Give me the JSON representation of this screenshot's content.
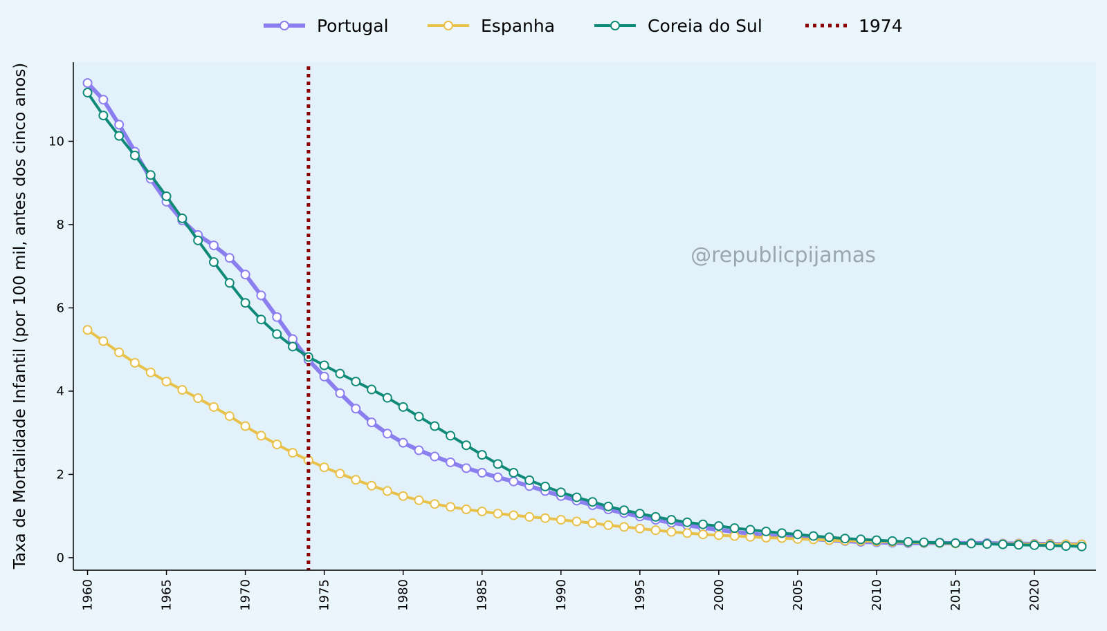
{
  "chart_data": {
    "type": "line",
    "title": "",
    "xlabel": "",
    "ylabel": "Taxa de Mortalidade Infantil (por 100 mil, antes dos cinco anos)",
    "xlim": [
      1959.1,
      2023.9
    ],
    "ylim": [
      -0.3,
      11.9
    ],
    "x_ticks": [
      1960,
      1965,
      1970,
      1975,
      1980,
      1985,
      1990,
      1995,
      2000,
      2005,
      2010,
      2015,
      2020
    ],
    "y_ticks": [
      0,
      2,
      4,
      6,
      8,
      10
    ],
    "grid": false,
    "legend_position": "top-center",
    "plot_background": "#e3f2fa",
    "page_background": "#eaf6fc",
    "watermark": "@republicpijamas",
    "x": [
      1960,
      1961,
      1962,
      1963,
      1964,
      1965,
      1966,
      1967,
      1968,
      1969,
      1970,
      1971,
      1972,
      1973,
      1974,
      1975,
      1976,
      1977,
      1978,
      1979,
      1980,
      1981,
      1982,
      1983,
      1984,
      1985,
      1986,
      1987,
      1988,
      1989,
      1990,
      1991,
      1992,
      1993,
      1994,
      1995,
      1996,
      1997,
      1998,
      1999,
      2000,
      2001,
      2002,
      2003,
      2004,
      2005,
      2006,
      2007,
      2008,
      2009,
      2010,
      2011,
      2012,
      2013,
      2014,
      2015,
      2016,
      2017,
      2018,
      2019,
      2020,
      2021,
      2022,
      2023
    ],
    "series": [
      {
        "name": "Portugal",
        "color": "#8b7ff0",
        "values": [
          11.4,
          11.0,
          10.4,
          9.75,
          9.1,
          8.55,
          8.1,
          7.75,
          7.5,
          7.2,
          6.8,
          6.3,
          5.78,
          5.25,
          4.75,
          4.35,
          3.95,
          3.58,
          3.25,
          2.98,
          2.76,
          2.58,
          2.43,
          2.29,
          2.15,
          2.04,
          1.93,
          1.83,
          1.72,
          1.6,
          1.48,
          1.37,
          1.26,
          1.16,
          1.07,
          0.99,
          0.91,
          0.84,
          0.78,
          0.72,
          0.67,
          0.62,
          0.58,
          0.54,
          0.51,
          0.48,
          0.45,
          0.42,
          0.4,
          0.38,
          0.37,
          0.36,
          0.35,
          0.35,
          0.35,
          0.35,
          0.35,
          0.35,
          0.34,
          0.34,
          0.33,
          0.33,
          0.32,
          0.32
        ]
      },
      {
        "name": "Espanha",
        "color": "#e8c14a",
        "values": [
          5.47,
          5.2,
          4.93,
          4.68,
          4.45,
          4.23,
          4.03,
          3.83,
          3.62,
          3.4,
          3.16,
          2.93,
          2.72,
          2.52,
          2.34,
          2.17,
          2.02,
          1.87,
          1.73,
          1.6,
          1.48,
          1.38,
          1.29,
          1.22,
          1.16,
          1.11,
          1.06,
          1.02,
          0.98,
          0.95,
          0.91,
          0.87,
          0.83,
          0.78,
          0.74,
          0.7,
          0.66,
          0.62,
          0.59,
          0.56,
          0.54,
          0.52,
          0.5,
          0.48,
          0.47,
          0.45,
          0.44,
          0.42,
          0.41,
          0.4,
          0.39,
          0.38,
          0.37,
          0.36,
          0.35,
          0.34,
          0.34,
          0.33,
          0.33,
          0.33,
          0.32,
          0.32,
          0.32,
          0.32
        ]
      },
      {
        "name": "Coreia do Sul",
        "color": "#0f8a78",
        "values": [
          11.17,
          10.62,
          10.13,
          9.66,
          9.19,
          8.68,
          8.15,
          7.62,
          7.1,
          6.6,
          6.12,
          5.72,
          5.37,
          5.07,
          4.82,
          4.62,
          4.42,
          4.23,
          4.04,
          3.84,
          3.62,
          3.39,
          3.16,
          2.93,
          2.7,
          2.47,
          2.25,
          2.04,
          1.86,
          1.71,
          1.57,
          1.45,
          1.34,
          1.23,
          1.14,
          1.06,
          0.98,
          0.91,
          0.85,
          0.8,
          0.76,
          0.71,
          0.67,
          0.63,
          0.59,
          0.56,
          0.52,
          0.49,
          0.46,
          0.44,
          0.42,
          0.4,
          0.38,
          0.37,
          0.36,
          0.35,
          0.34,
          0.33,
          0.32,
          0.31,
          0.3,
          0.29,
          0.28,
          0.27
        ]
      }
    ],
    "reference_line": {
      "name": "1974",
      "x": 1974,
      "color": "#8b0000",
      "style": "dotted"
    }
  }
}
